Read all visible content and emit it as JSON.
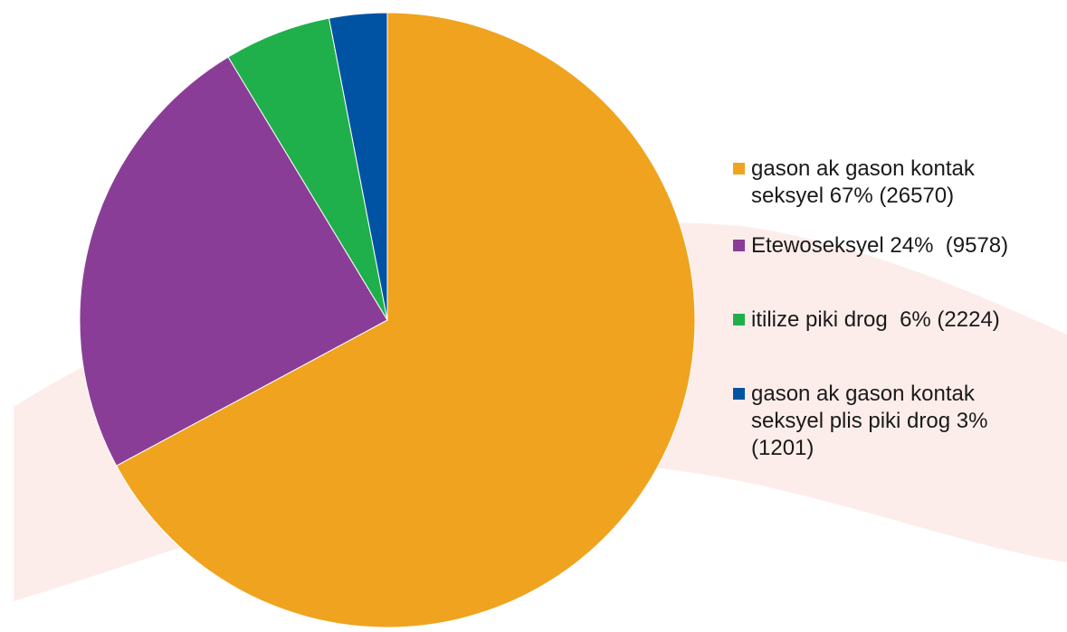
{
  "chart_data": {
    "type": "pie",
    "title": "",
    "slices": [
      {
        "label": "gason ak gason kontak\nseksyel 67% (26570)",
        "value": 26570,
        "color": "#F0A31F"
      },
      {
        "label": "Etewoseksyel 24%  (9578)",
        "value": 9578,
        "color": "#8A3D96"
      },
      {
        "label": "itilize piki drog  6% (2224)",
        "value": 2224,
        "color": "#20B04B"
      },
      {
        "label": "gason ak gason kontak\nseksyel plis piki drog 3%\n(1201)",
        "value": 1201,
        "color": "#0053A3"
      }
    ],
    "start_angle_deg": 0,
    "direction": "clockwise",
    "legend_position": "right"
  },
  "background": {
    "swoosh_color": "#FDEDEA"
  }
}
